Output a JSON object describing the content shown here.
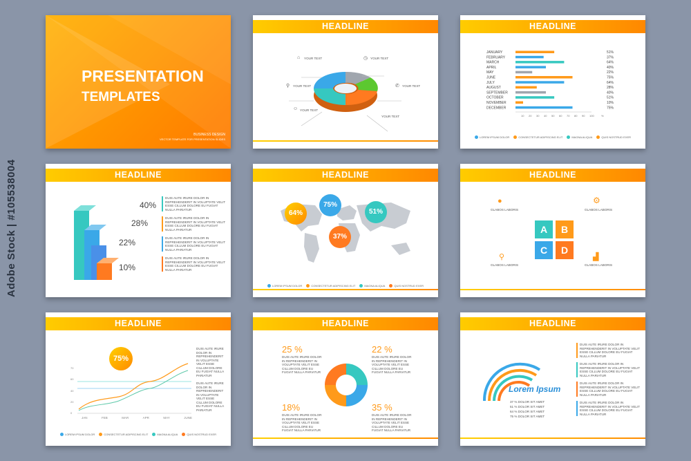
{
  "side_text": "Adobe Stock | #105538004",
  "s1": {
    "title": "PRESENTATION",
    "subtitle": "TEMPLATES",
    "small1": "BUSINESS DESIGN",
    "small2": "VECTOR TEMPLATE FOR PRESENTATION SLIDES"
  },
  "s2": {
    "headline": "HEADLINE",
    "labels": [
      "YOUR TEXT",
      "YOUR TEXT",
      "YOUR TEXT",
      "YOUR TEXT",
      "YOUR TEXT",
      "YOUR TEXT"
    ]
  },
  "s3": {
    "headline": "HEADLINE",
    "chart_data": {
      "type": "bar",
      "categories": [
        "JANUARY",
        "FEBRUARY",
        "MARCH",
        "APRIL",
        "MAY",
        "JUNE",
        "JULY",
        "AUGUST",
        "SEPTEMBER",
        "OCTOBER",
        "NOVEMBER",
        "DECEMBER"
      ],
      "values": [
        51,
        37,
        64,
        40,
        22,
        75,
        64,
        28,
        40,
        51,
        10,
        75
      ],
      "labels": [
        "51%",
        "37%",
        "64%",
        "40%",
        "22%",
        "75%",
        "64%",
        "28%",
        "40%",
        "51%",
        "10%",
        "75%"
      ],
      "bar_colors": [
        "#ff9a1a",
        "#3aa8e8",
        "#36c8c0",
        "#3aa8e8",
        "#a0a6ae",
        "#ff9a1a",
        "#3aa8e8",
        "#ff9a1a",
        "#a0a6ae",
        "#36c8c0",
        "#ff9a1a",
        "#3aa8e8"
      ],
      "xticks": [
        "10",
        "20",
        "30",
        "40",
        "50",
        "60",
        "70",
        "80",
        "90",
        "100"
      ],
      "xunit": "%",
      "xlim": [
        0,
        100
      ]
    },
    "legend": [
      "LOREM IPSUM DOLOR",
      "CONSECTETUR ADIPISCING ELIT",
      "MAGNA ALIQUA",
      "QUIS NOSTRUD EXER"
    ]
  },
  "s4": {
    "headline": "HEADLINE",
    "pcts": [
      "40%",
      "28%",
      "22%",
      "10%"
    ]
  },
  "s5": {
    "headline": "HEADLINE",
    "bubbles": [
      "64%",
      "75%",
      "51%",
      "37%"
    ],
    "legend": [
      "LOREM IPSUM DOLOR",
      "CONSECTETUR ADIPISCING ELIT",
      "MAGNA ALIQUA",
      "QUIS NOSTRUD EXER"
    ]
  },
  "s6": {
    "headline": "HEADLINE",
    "letters": [
      "A",
      "B",
      "C",
      "D"
    ],
    "labels": [
      "GLABOS LABORIS",
      "GLABOS LABORIS",
      "GLABOS LABORIS",
      "GLABOS LABORIS"
    ]
  },
  "s7": {
    "headline": "HEADLINE",
    "bubble": "75%",
    "chart_data": {
      "type": "line",
      "x": [
        "JAN",
        "FEB",
        "MAR",
        "APR",
        "MAY",
        "JUNE"
      ],
      "yticks": [
        "0",
        "10",
        "20",
        "30",
        "40",
        "50",
        "60",
        "70"
      ],
      "ylim": [
        0,
        70
      ]
    },
    "legend": [
      "LOREM IPSUM DOLOR",
      "CONSECTETUR ADIPISCING ELIT",
      "MAGNA ALIQUA",
      "QUIS NOSTRUD EXER"
    ]
  },
  "s8": {
    "headline": "HEADLINE",
    "pcts": [
      "25 %",
      "22 %",
      "18%",
      "35 %"
    ]
  },
  "s9": {
    "headline": "HEADLINE",
    "title": "Lorem Ipsum",
    "rows": [
      "37 % DOLOR SIT AMET",
      "51 % DOLOR SIT AMET",
      "64 % DOLOR SIT AMET",
      "75 % DOLOR SIT AMET"
    ]
  },
  "lorem": "DUIS AUTE IRURE DOLOR IN REPREHENDERIT IN VOLUPTATE VELIT ESSE CILLUM DOLORE EU FUGIAT NULLA PARIATUR",
  "colors": {
    "orange": "#ff8800",
    "yellow": "#ffcc00",
    "blue": "#3aa8e8",
    "teal": "#36c8c0",
    "grey": "#a0a6ae",
    "bg": "#8a95a8"
  }
}
